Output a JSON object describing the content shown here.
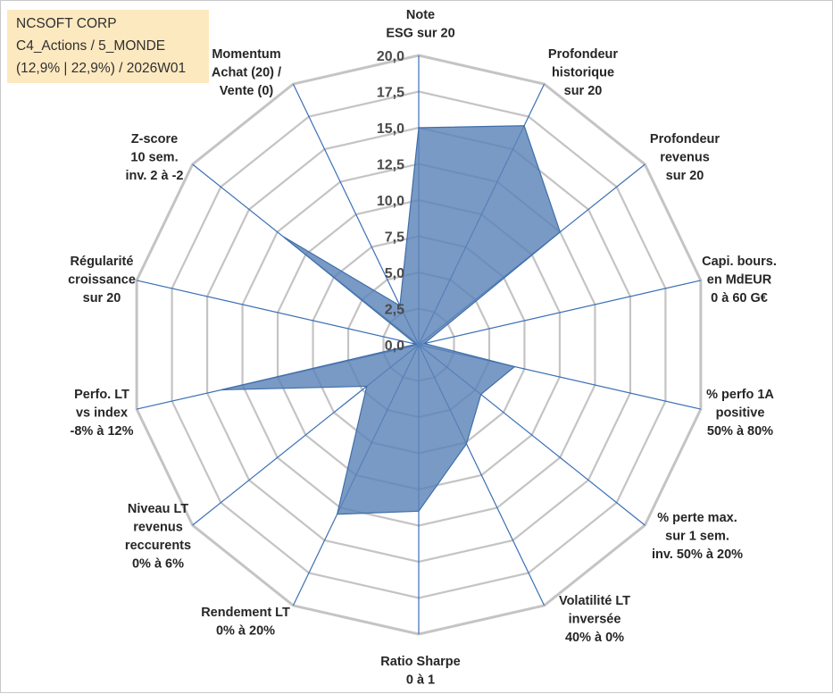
{
  "header": {
    "company": "NCSOFT CORP",
    "portfolio": "C4_Actions / 5_MONDE",
    "period": "(12,9% | 22,9%) / 2026W01"
  },
  "colors": {
    "fill": "#5b84b8",
    "stroke": "#3f6ea8",
    "spoke": "#3b6fb6",
    "ring": "#c4c4c4",
    "title_bg": "#fde9c0"
  },
  "chart_data": {
    "type": "radar",
    "title": "NCSOFT CORP",
    "range": [
      0,
      20
    ],
    "ticks": [
      "0,0",
      "2,5",
      "5,0",
      "7,5",
      "10,0",
      "12,5",
      "15,0",
      "17,5",
      "20,0"
    ],
    "tick_values": [
      0,
      2.5,
      5,
      7.5,
      10,
      12.5,
      15,
      17.5,
      20
    ],
    "axes": [
      {
        "lines": [
          "Note",
          "ESG sur 20"
        ],
        "value": 15.0
      },
      {
        "lines": [
          "Profondeur",
          "historique",
          "sur 20"
        ],
        "value": 16.8
      },
      {
        "lines": [
          "Profondeur",
          "revenus",
          "sur 20"
        ],
        "value": 12.5
      },
      {
        "lines": [
          "Capi. bours.",
          "en MdEUR",
          "0 à 60 G€"
        ],
        "value": 0.4
      },
      {
        "lines": [
          "% perfo 1A",
          "positive",
          "50% à 80%"
        ],
        "value": 6.8
      },
      {
        "lines": [
          "% perte max.",
          "sur 1 sem.",
          "inv. 50% à 20%"
        ],
        "value": 5.5
      },
      {
        "lines": [
          "Volatilité LT",
          "inversée",
          "40% à 0%"
        ],
        "value": 7.6
      },
      {
        "lines": [
          "Ratio Sharpe",
          "0 à 1"
        ],
        "value": 11.5
      },
      {
        "lines": [
          "Rendement LT",
          "0% à 20%"
        ],
        "value": 13.0
      },
      {
        "lines": [
          "Niveau LT",
          "revenus",
          "reccurents",
          "0% à 6%"
        ],
        "value": 4.6
      },
      {
        "lines": [
          "Perfo. LT",
          "vs index",
          "-8% à 12%"
        ],
        "value": 14.0
      },
      {
        "lines": [
          "Régularité",
          "croissance",
          "sur 20"
        ],
        "value": 0.2
      },
      {
        "lines": [
          "Z-score",
          "10 sem.",
          "inv. 2 à -2"
        ],
        "value": 12.0
      },
      {
        "lines": [
          "Momentum",
          "Achat (20) /",
          "Vente (0)"
        ],
        "value": 3.0
      }
    ]
  }
}
